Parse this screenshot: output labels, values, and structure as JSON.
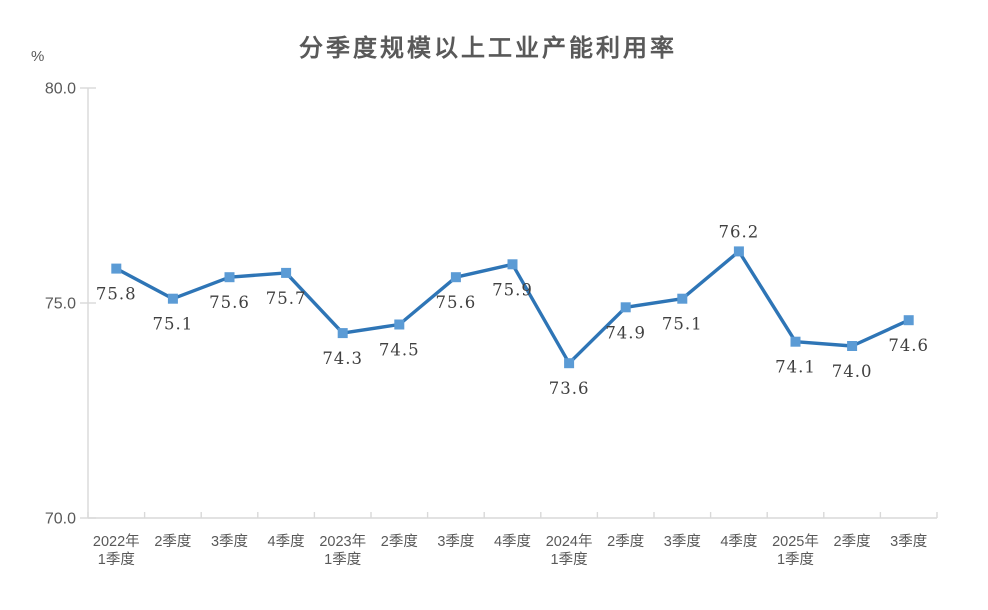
{
  "colors": {
    "line": "#2E75B6",
    "marker": "#5B9BD5",
    "axis": "#D9D9D9",
    "axis_text": "#595959",
    "data_label_text": "#404040",
    "title_text": "#595959"
  },
  "chart_data": {
    "type": "line",
    "title": "分季度规模以上工业产能利用率",
    "ylabel": "%",
    "xlabel": "",
    "ylim": [
      70.0,
      80.0
    ],
    "y_ticks": [
      "80.0",
      "75.0",
      "70.0"
    ],
    "grid": false,
    "legend": false,
    "marker": "square",
    "categories": [
      "2022年\n1季度",
      "2季度",
      "3季度",
      "4季度",
      "2023年\n1季度",
      "2季度",
      "3季度",
      "4季度",
      "2024年\n1季度",
      "2季度",
      "3季度",
      "4季度",
      "2025年\n1季度",
      "2季度",
      "3季度"
    ],
    "values": [
      75.8,
      75.1,
      75.6,
      75.7,
      74.3,
      74.5,
      75.6,
      75.9,
      73.6,
      74.9,
      75.1,
      76.2,
      74.1,
      74.0,
      74.6
    ],
    "data_labels": [
      "75.8",
      "75.1",
      "75.6",
      "75.7",
      "74.3",
      "74.5",
      "75.6",
      "75.9",
      "73.6",
      "74.9",
      "75.1",
      "76.2",
      "74.1",
      "74.0",
      "74.6"
    ],
    "label_positions": [
      "below",
      "below",
      "below",
      "below",
      "below",
      "below",
      "below",
      "below",
      "below",
      "below",
      "below",
      "above",
      "below",
      "below",
      "below"
    ]
  }
}
